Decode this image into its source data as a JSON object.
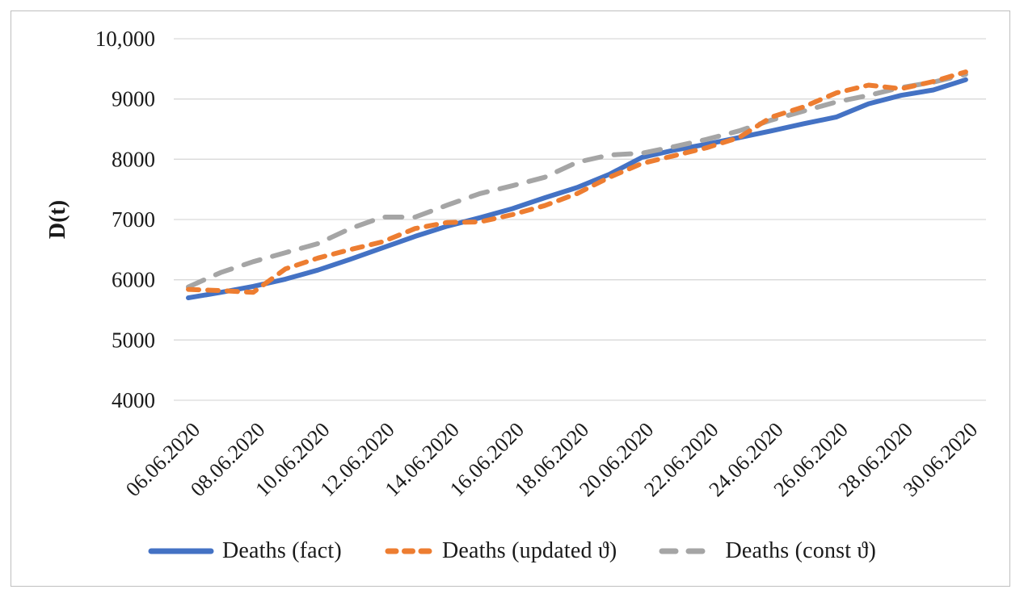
{
  "figure": {
    "y_axis_title": "D(t)",
    "y_tick_labels": [
      "10,000",
      "9000",
      "8000",
      "7000",
      "6000",
      "5000",
      "4000"
    ],
    "x_tick_labels": [
      "06.06.2020",
      "08.06.2020",
      "10.06.2020",
      "12.06.2020",
      "14.06.2020",
      "16.06.2020",
      "18.06.2020",
      "20.06.2020",
      "22.06.2020",
      "24.06.2020",
      "26.06.2020",
      "28.06.2020",
      "30.06.2020"
    ],
    "grid_color": "#d9d9d9",
    "frame_color": "#bfbfbf",
    "text_color": "#1a1a1a"
  },
  "legend": {
    "items": [
      {
        "label": "Deaths (fact)",
        "color": "#4472C4",
        "line_style": "solid"
      },
      {
        "label": "Deaths (updated ϑ)",
        "color": "#ED7D31",
        "line_style": "dashed-short"
      },
      {
        "label": "Deaths (const ϑ)",
        "color": "#A5A5A5",
        "line_style": "dashed-long"
      }
    ]
  },
  "chart_data": {
    "type": "line",
    "title": "",
    "xlabel": "",
    "ylabel": "D(t)",
    "ylim": [
      4000,
      10000
    ],
    "y_ticks": [
      10000,
      9000,
      8000,
      7000,
      6000,
      5000,
      4000
    ],
    "grid": "horizontal",
    "legend_position": "bottom",
    "x_tick_step": 2,
    "x": [
      "06.06.2020",
      "07.06.2020",
      "08.06.2020",
      "09.06.2020",
      "10.06.2020",
      "11.06.2020",
      "12.06.2020",
      "13.06.2020",
      "14.06.2020",
      "15.06.2020",
      "16.06.2020",
      "17.06.2020",
      "18.06.2020",
      "19.06.2020",
      "20.06.2020",
      "21.06.2020",
      "22.06.2020",
      "23.06.2020",
      "24.06.2020",
      "25.06.2020",
      "26.06.2020",
      "27.06.2020",
      "28.06.2020",
      "29.06.2020",
      "30.06.2020"
    ],
    "series": [
      {
        "name": "Deaths (fact)",
        "values": [
          5700,
          5790,
          5890,
          6010,
          6160,
          6340,
          6530,
          6720,
          6890,
          7030,
          7180,
          7360,
          7530,
          7750,
          8030,
          8150,
          8250,
          8360,
          8470,
          8590,
          8700,
          8920,
          9060,
          9150,
          9320
        ]
      },
      {
        "name": "Deaths (updated ϑ)",
        "values": [
          5840,
          5820,
          5790,
          6180,
          6360,
          6500,
          6630,
          6850,
          6950,
          6960,
          7080,
          7230,
          7430,
          7700,
          7930,
          8060,
          8190,
          8360,
          8700,
          8870,
          9100,
          9230,
          9170,
          9290,
          9450
        ]
      },
      {
        "name": "Deaths (const ϑ)",
        "values": [
          5880,
          6120,
          6300,
          6450,
          6600,
          6850,
          7040,
          7040,
          7240,
          7430,
          7560,
          7700,
          7950,
          8070,
          8100,
          8210,
          8330,
          8470,
          8650,
          8800,
          8950,
          9060,
          9190,
          9280,
          9410
        ]
      }
    ]
  }
}
